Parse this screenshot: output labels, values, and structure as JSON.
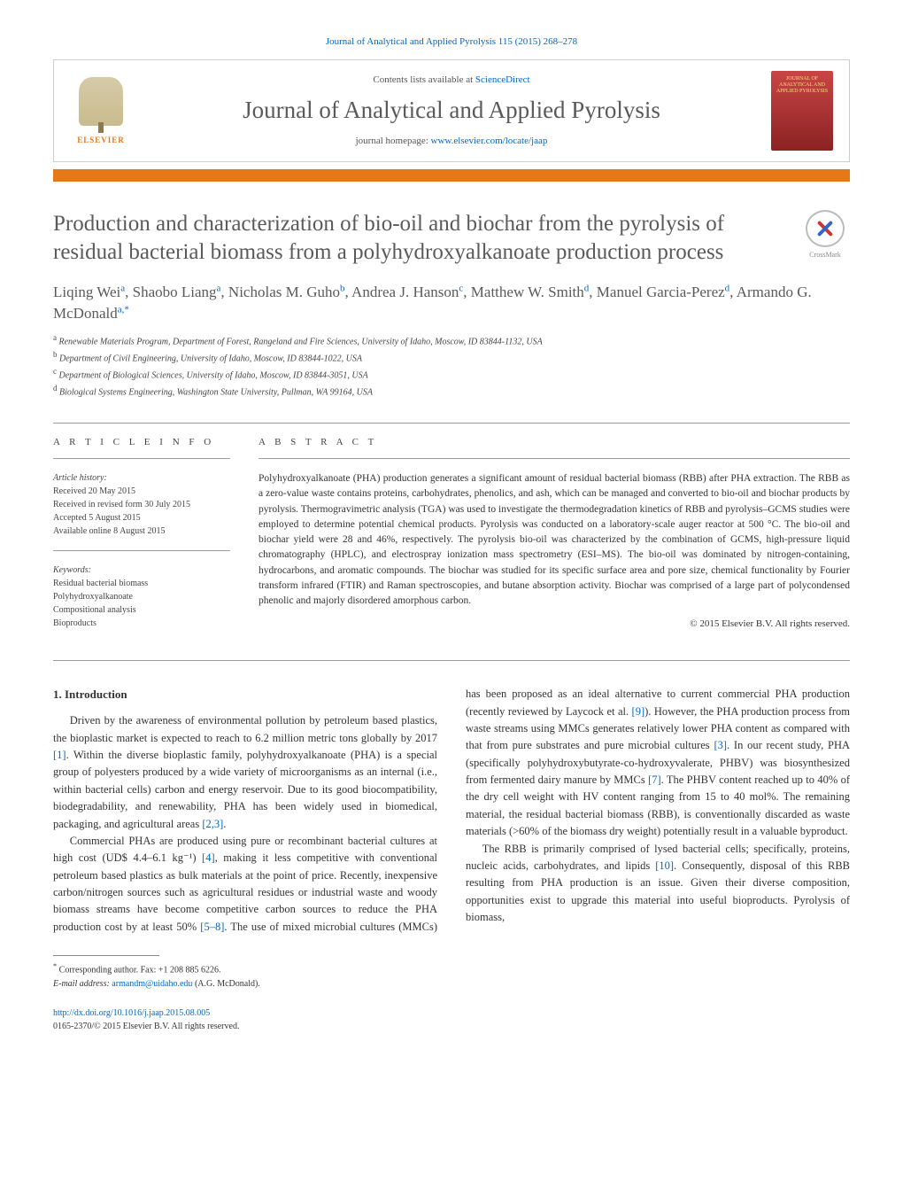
{
  "header": {
    "citation": "Journal of Analytical and Applied Pyrolysis 115 (2015) 268–278",
    "contents_prefix": "Contents lists available at ",
    "contents_link": "ScienceDirect",
    "journal_name": "Journal of Analytical and Applied Pyrolysis",
    "homepage_prefix": "journal homepage: ",
    "homepage_url": "www.elsevier.com/locate/jaap",
    "elsevier_label": "ELSEVIER",
    "cover_text": "JOURNAL OF ANALYTICAL AND APPLIED PYROLYSIS",
    "crossmark_label": "CrossMark"
  },
  "colors": {
    "accent": "#e67817",
    "link": "#0066cc",
    "title_gray": "#5a5a5a",
    "cover_bg_top": "#c94545",
    "cover_bg_bot": "#8b2222"
  },
  "title": "Production and characterization of bio-oil and biochar from the pyrolysis of residual bacterial biomass from a polyhydroxyalkanoate production process",
  "authors_html": "Liqing Wei<sup>a</sup>, Shaobo Liang<sup>a</sup>, Nicholas M. Guho<sup>b</sup>, Andrea J. Hanson<sup>c</sup>, Matthew W. Smith<sup>d</sup>, Manuel Garcia-Perez<sup>d</sup>, Armando G. McDonald<sup>a,*</sup>",
  "affiliations": [
    {
      "sup": "a",
      "text": "Renewable Materials Program, Department of Forest, Rangeland and Fire Sciences, University of Idaho, Moscow, ID 83844-1132, USA"
    },
    {
      "sup": "b",
      "text": "Department of Civil Engineering, University of Idaho, Moscow, ID 83844-1022, USA"
    },
    {
      "sup": "c",
      "text": "Department of Biological Sciences, University of Idaho, Moscow, ID 83844-3051, USA"
    },
    {
      "sup": "d",
      "text": "Biological Systems Engineering, Washington State University, Pullman, WA 99164, USA"
    }
  ],
  "article_info": {
    "heading": "A R T I C L E   I N F O",
    "history_label": "Article history:",
    "history": [
      "Received 20 May 2015",
      "Received in revised form 30 July 2015",
      "Accepted 5 August 2015",
      "Available online 8 August 2015"
    ],
    "keywords_label": "Keywords:",
    "keywords": [
      "Residual bacterial biomass",
      "Polyhydroxyalkanoate",
      "Compositional analysis",
      "Bioproducts"
    ]
  },
  "abstract": {
    "heading": "A B S T R A C T",
    "text": "Polyhydroxyalkanoate (PHA) production generates a significant amount of residual bacterial biomass (RBB) after PHA extraction. The RBB as a zero-value waste contains proteins, carbohydrates, phenolics, and ash, which can be managed and converted to bio-oil and biochar products by pyrolysis. Thermogravimetric analysis (TGA) was used to investigate the thermodegradation kinetics of RBB and pyrolysis–GCMS studies were employed to determine potential chemical products. Pyrolysis was conducted on a laboratory-scale auger reactor at 500 °C. The bio-oil and biochar yield were 28 and 46%, respectively. The pyrolysis bio-oil was characterized by the combination of GCMS, high-pressure liquid chromatography (HPLC), and electrospray ionization mass spectrometry (ESI–MS). The bio-oil was dominated by nitrogen-containing, hydrocarbons, and aromatic compounds. The biochar was studied for its specific surface area and pore size, chemical functionality by Fourier transform infrared (FTIR) and Raman spectroscopies, and butane absorption activity. Biochar was comprised of a large part of polycondensed phenolic and majorly disordered amorphous carbon.",
    "copyright": "© 2015 Elsevier B.V. All rights reserved."
  },
  "body": {
    "section_heading": "1. Introduction",
    "p1_a": "Driven by the awareness of environmental pollution by petroleum based plastics, the bioplastic market is expected to reach to 6.2 million metric tons globally by 2017 ",
    "ref1": "[1]",
    "p1_b": ". Within the diverse bioplastic family, polyhydroxyalkanoate (PHA) is a special group of polyesters produced by a wide variety of microorganisms as an internal (i.e., within bacterial cells) carbon and energy reservoir. Due to its good biocompatibility, biodegradability, and renewability, PHA has been widely used in biomedical, packaging, and agricultural areas ",
    "ref23": "[2,3]",
    "p1_c": ".",
    "p2_a": "Commercial PHAs are produced using pure or recombinant bacterial cultures at high cost (UD$ 4.4–6.1 kg⁻¹) ",
    "ref4": "[4]",
    "p2_b": ", making it less competitive with conventional petroleum based plastics as bulk materials at the point of price. Recently, inexpensive carbon/nitrogen sources such as agricultural residues or industrial ",
    "p2_c": "waste and woody biomass streams have become competitive carbon sources to reduce the PHA production cost by at least 50% ",
    "ref58": "[5–8]",
    "p2_d": ". The use of mixed microbial cultures (MMCs) has been proposed as an ideal alternative to current commercial PHA production (recently reviewed by Laycock et al. ",
    "ref9": "[9]",
    "p2_e": "). However, the PHA production process from waste streams using MMCs generates relatively lower PHA content as compared with that from pure substrates and pure microbial cultures ",
    "ref3": "[3]",
    "p2_f": ". In our recent study, PHA (specifically polyhydroxybutyrate-co-hydroxyvalerate, PHBV) was biosynthesized from fermented dairy manure by MMCs ",
    "ref7": "[7]",
    "p2_g": ". The PHBV content reached up to 40% of the dry cell weight with HV content ranging from 15 to 40 mol%. The remaining material, the residual bacterial biomass (RBB), is conventionally discarded as waste materials (>60% of the biomass dry weight) potentially result in a valuable byproduct.",
    "p3_a": "The RBB is primarily comprised of lysed bacterial cells; specifically, proteins, nucleic acids, carbohydrates, and lipids ",
    "ref10": "[10]",
    "p3_b": ". Consequently, disposal of this RBB resulting from PHA production is an issue. Given their diverse composition, opportunities exist to upgrade this material into useful bioproducts. Pyrolysis of biomass,"
  },
  "corresponding": {
    "star": "*",
    "line1": "Corresponding author. Fax: +1 208 885 6226.",
    "email_label": "E-mail address: ",
    "email": "armandm@uidaho.edu",
    "email_suffix": " (A.G. McDonald)."
  },
  "footer": {
    "doi": "http://dx.doi.org/10.1016/j.jaap.2015.08.005",
    "issn_line": "0165-2370/© 2015 Elsevier B.V. All rights reserved."
  }
}
